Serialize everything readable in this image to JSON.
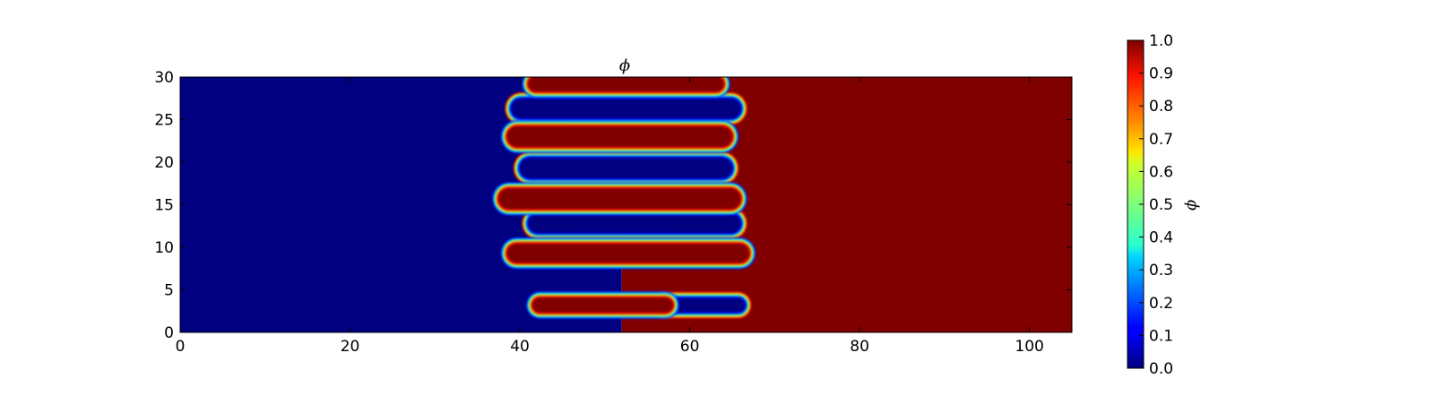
{
  "chart_data": {
    "type": "heatmap",
    "title": "ϕ",
    "xlabel": "",
    "ylabel": "",
    "xlim": [
      0,
      105
    ],
    "ylim": [
      0,
      30
    ],
    "x_ticks": [
      0,
      20,
      40,
      60,
      80,
      100
    ],
    "y_ticks": [
      0,
      5,
      10,
      15,
      20,
      25,
      30
    ],
    "x_tick_labels": [
      "0",
      "20",
      "40",
      "60",
      "80",
      "100"
    ],
    "y_tick_labels": [
      "0",
      "5",
      "10",
      "15",
      "20",
      "25",
      "30"
    ],
    "colormap": "jet",
    "colorbar": {
      "label": "ϕ",
      "range": [
        0.0,
        1.0
      ],
      "ticks": [
        0.0,
        0.1,
        0.2,
        0.3,
        0.4,
        0.5,
        0.6,
        0.7,
        0.8,
        0.9,
        1.0
      ],
      "tick_labels": [
        "0.0",
        "0.1",
        "0.2",
        "0.3",
        "0.4",
        "0.5",
        "0.6",
        "0.7",
        "0.8",
        "0.9",
        "1.0"
      ]
    },
    "field_description": {
      "left_region": {
        "x_range": [
          0,
          38
        ],
        "value": 0.0
      },
      "right_region": {
        "x_range": [
          67,
          105
        ],
        "value": 1.0
      },
      "fingers_value_1": [
        {
          "x_start": 41,
          "x_end": 64,
          "y": 29.2,
          "thickness": 1.8
        },
        {
          "x_start": 38.5,
          "x_end": 65,
          "y": 23,
          "thickness": 2.4
        },
        {
          "x_start": 37.5,
          "x_end": 66,
          "y": 15.7,
          "thickness": 2.4
        },
        {
          "x_start": 38.5,
          "x_end": 67,
          "y": 9.3,
          "thickness": 2.2
        },
        {
          "x_start": 41.5,
          "x_end": 58,
          "y": 3.2,
          "thickness": 1.7
        }
      ],
      "fingers_value_0": [
        {
          "x_start": 39,
          "x_end": 66,
          "y": 26.3,
          "thickness": 2.3
        },
        {
          "x_start": 40,
          "x_end": 65,
          "y": 19.3,
          "thickness": 2.4
        },
        {
          "x_start": 41,
          "x_end": 66,
          "y": 12.8,
          "thickness": 2.2
        },
        {
          "x_start": 56,
          "x_end": 66.5,
          "y": 3.2,
          "thickness": 1.6
        }
      ]
    },
    "colors": {
      "jet_0.0": "#00007f",
      "jet_0.125": "#0000ff",
      "jet_0.375": "#00ffff",
      "jet_0.5": "#7dff7a",
      "jet_0.625": "#ffff00",
      "jet_0.875": "#ff0000",
      "jet_1.0": "#7f0000"
    }
  }
}
